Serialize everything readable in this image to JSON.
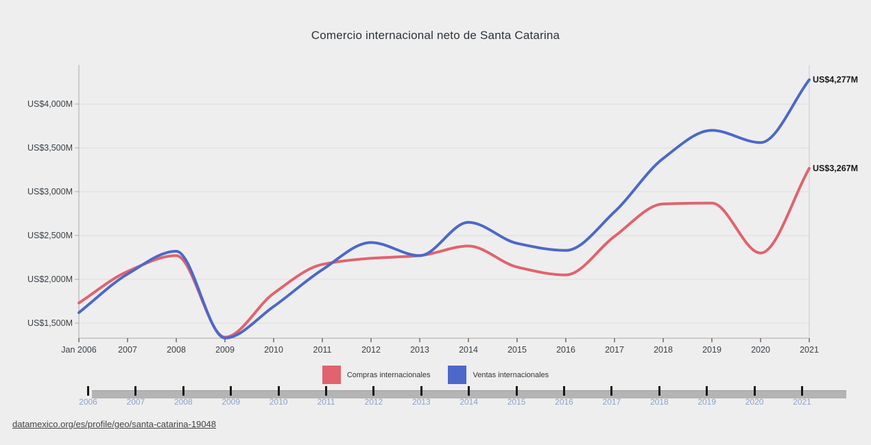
{
  "title": "Comercio internacional neto de Santa Catarina",
  "source_link": "datamexico.org/es/profile/geo/santa-catarina-19048",
  "colors": {
    "background": "#eeeeee",
    "grid": "#dcdcdc",
    "axis": "#a9a9a9",
    "axis_right": "#c9c9c9",
    "tick": "#4a4a4a",
    "axis_text": "#3a4046",
    "end_label_text": "#15181c",
    "compras": "#e0636e",
    "ventas": "#4d68c8",
    "timeline_bar": "#b4b4b4",
    "timeline_tick": "#161616",
    "timeline_year": "#89a1cf"
  },
  "chart_data": {
    "type": "line",
    "title": "Comercio internacional neto de Santa Catarina",
    "x_labels": [
      "Jan 2006",
      "2007",
      "2008",
      "2009",
      "2010",
      "2011",
      "2012",
      "2013",
      "2014",
      "2015",
      "2016",
      "2017",
      "2018",
      "2019",
      "2020",
      "2021"
    ],
    "y_ticks": [
      1500,
      2000,
      2500,
      3000,
      3500,
      4000
    ],
    "y_tick_labels": [
      "US$1,500M",
      "US$2,000M",
      "US$2,500M",
      "US$3,000M",
      "US$3,500M",
      "US$4,000M"
    ],
    "ylim": [
      1330,
      4440
    ],
    "grid": true,
    "legend_position": "bottom",
    "series": [
      {
        "name": "Compras internacionales",
        "color": "#e0636e",
        "values": [
          1730,
          2090,
          2270,
          1340,
          1840,
          2170,
          2240,
          2270,
          2380,
          2140,
          2050,
          2490,
          2860,
          2870,
          2300,
          3267
        ],
        "end_label": "US$3,267M"
      },
      {
        "name": "Ventas internacionales",
        "color": "#4d68c8",
        "values": [
          1620,
          2060,
          2320,
          1330,
          1690,
          2110,
          2420,
          2270,
          2650,
          2410,
          2330,
          2770,
          3380,
          3700,
          3560,
          4277
        ],
        "end_label": "US$4,277M"
      }
    ]
  },
  "legend": {
    "items": [
      {
        "label": "Compras internacionales"
      },
      {
        "label": "Ventas internacionales"
      }
    ]
  },
  "timeline": {
    "years": [
      "2006",
      "2007",
      "2008",
      "2009",
      "2010",
      "2011",
      "2012",
      "2013",
      "2014",
      "2015",
      "2016",
      "2017",
      "2018",
      "2019",
      "2020",
      "2021"
    ]
  }
}
